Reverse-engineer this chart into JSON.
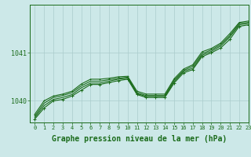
{
  "background_color": "#cce8e8",
  "grid_color": "#aacccc",
  "line_color": "#1a6b1a",
  "xlabel": "Graphe pression niveau de la mer (hPa)",
  "xlabel_fontsize": 7,
  "xlim": [
    -0.5,
    23
  ],
  "ylim_min": 1039.55,
  "ylim_max": 1042.0,
  "x": [
    0,
    1,
    2,
    3,
    4,
    5,
    6,
    7,
    8,
    9,
    10,
    11,
    12,
    13,
    14,
    15,
    16,
    17,
    18,
    19,
    20,
    21,
    22,
    23
  ],
  "series1": [
    1039.62,
    1039.85,
    1040.0,
    1040.03,
    1040.1,
    1040.22,
    1040.34,
    1040.34,
    1040.38,
    1040.42,
    1040.45,
    1040.13,
    1040.07,
    1040.07,
    1040.07,
    1040.37,
    1040.58,
    1040.65,
    1040.92,
    1041.0,
    1041.1,
    1041.28,
    1041.55,
    1041.58
  ],
  "series2": [
    1039.65,
    1039.9,
    1040.03,
    1040.07,
    1040.13,
    1040.27,
    1040.37,
    1040.37,
    1040.41,
    1040.45,
    1040.47,
    1040.15,
    1040.09,
    1040.09,
    1040.09,
    1040.4,
    1040.61,
    1040.68,
    1040.95,
    1041.03,
    1041.14,
    1041.33,
    1041.58,
    1041.61
  ],
  "series3": [
    1039.68,
    1039.95,
    1040.07,
    1040.11,
    1040.17,
    1040.31,
    1040.41,
    1040.41,
    1040.44,
    1040.47,
    1040.49,
    1040.17,
    1040.11,
    1040.11,
    1040.11,
    1040.43,
    1040.63,
    1040.72,
    1040.98,
    1041.06,
    1041.17,
    1041.36,
    1041.61,
    1041.63
  ],
  "series4": [
    1039.72,
    1040.0,
    1040.1,
    1040.14,
    1040.2,
    1040.35,
    1040.45,
    1040.45,
    1040.47,
    1040.5,
    1040.51,
    1040.2,
    1040.14,
    1040.14,
    1040.14,
    1040.46,
    1040.66,
    1040.75,
    1041.02,
    1041.09,
    1041.2,
    1041.4,
    1041.63,
    1041.66
  ],
  "yticks": [
    1040,
    1041
  ],
  "xtick_fontsize": 5,
  "ytick_fontsize": 6,
  "figwidth": 3.2,
  "figheight": 2.0,
  "dpi": 100
}
